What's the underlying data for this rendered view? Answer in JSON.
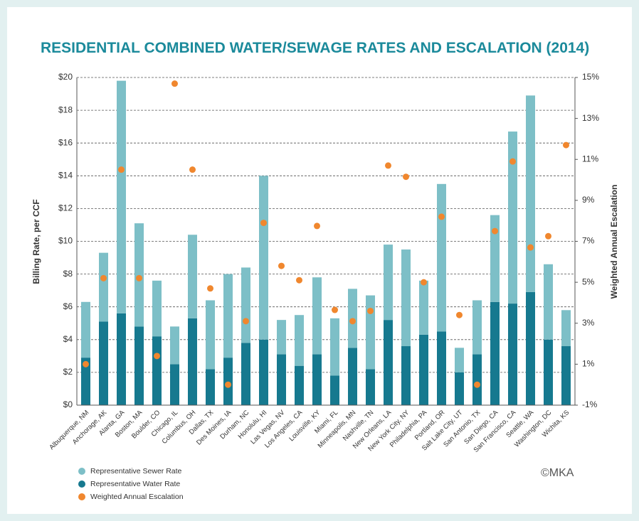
{
  "chart_data": {
    "type": "bar",
    "stacked": true,
    "title": "RESIDENTIAL COMBINED WATER/SEWAGE RATES AND ESCALATION (2014)",
    "ylabel": "Billing Rate, per CCF",
    "y2label": "Weighted Annual Escalation",
    "credit": "©MKA",
    "grid": true,
    "legend": "bottom-left",
    "categories": [
      "Albuquerque, NM",
      "Anchorage, AK",
      "Alanta, GA",
      "Boston, MA",
      "Boulder, CO",
      "Chicago, IL",
      "Columbus, OH",
      "Dallas, TX",
      "Des Moines, IA",
      "Durham, NC",
      "Honolulu, HI",
      "Las Vegas, NV",
      "Los Angeles, CA",
      "Louisville, KY",
      "Miami, FL",
      "Minneapolis, MN",
      "Nashville, TN",
      "New Orleans, LA",
      "New York City, NY",
      "Philadelphia, PA",
      "Portland, OR",
      "Salt Lake City, UT",
      "San Antonio, TX",
      "San Diego, CA",
      "San Francisco, CA",
      "Seattle, WA",
      "Washington, DC",
      "Wichita, KS"
    ],
    "series": [
      {
        "name": "Representative Sewer Rate",
        "color": "#7dbfc7",
        "values": [
          3.4,
          4.2,
          14.2,
          6.3,
          3.4,
          2.3,
          5.1,
          4.2,
          5.1,
          4.6,
          10.0,
          2.1,
          3.1,
          4.7,
          3.5,
          3.6,
          4.5,
          4.6,
          5.9,
          3.3,
          9.0,
          1.5,
          3.3,
          5.3,
          10.5,
          12.0,
          4.6,
          2.2
        ]
      },
      {
        "name": "Representative Water Rate",
        "color": "#16798f",
        "values": [
          2.9,
          5.1,
          5.6,
          4.8,
          4.2,
          2.5,
          5.3,
          2.2,
          2.9,
          3.8,
          4.0,
          3.1,
          2.4,
          3.1,
          1.8,
          3.5,
          2.2,
          5.2,
          3.6,
          4.3,
          4.5,
          2.0,
          3.1,
          6.3,
          6.2,
          6.9,
          4.0,
          3.6
        ]
      },
      {
        "name": "Weighted Annual Escalation",
        "color": "#f0872e",
        "type": "scatter",
        "axis": "y2",
        "values": [
          1.0,
          5.2,
          10.5,
          5.2,
          1.4,
          14.7,
          10.5,
          4.7,
          0.0,
          3.1,
          7.9,
          5.8,
          5.1,
          7.75,
          3.65,
          3.1,
          3.6,
          10.7,
          10.15,
          5.0,
          8.2,
          3.4,
          0.0,
          7.5,
          10.9,
          6.7,
          7.25,
          11.7
        ]
      }
    ],
    "ylim": [
      0,
      20
    ],
    "yticks": [
      {
        "value": 0,
        "label": "$0"
      },
      {
        "value": 2,
        "label": "$2"
      },
      {
        "value": 4,
        "label": "$4"
      },
      {
        "value": 6,
        "label": "$6"
      },
      {
        "value": 8,
        "label": "$8"
      },
      {
        "value": 10,
        "label": "$10"
      },
      {
        "value": 12,
        "label": "$12"
      },
      {
        "value": 14,
        "label": "$14"
      },
      {
        "value": 16,
        "label": "$16"
      },
      {
        "value": 18,
        "label": "$18"
      },
      {
        "value": 20,
        "label": "$20"
      }
    ],
    "y2lim": [
      -1,
      15
    ],
    "y2ticks": [
      {
        "value": -1,
        "label": "-1%"
      },
      {
        "value": 1,
        "label": "1%"
      },
      {
        "value": 3,
        "label": "3%"
      },
      {
        "value": 5,
        "label": "5%"
      },
      {
        "value": 7,
        "label": "7%"
      },
      {
        "value": 9,
        "label": "9%"
      },
      {
        "value": 11,
        "label": "11%"
      },
      {
        "value": 13,
        "label": "13%"
      },
      {
        "value": 15,
        "label": "15%"
      }
    ]
  }
}
